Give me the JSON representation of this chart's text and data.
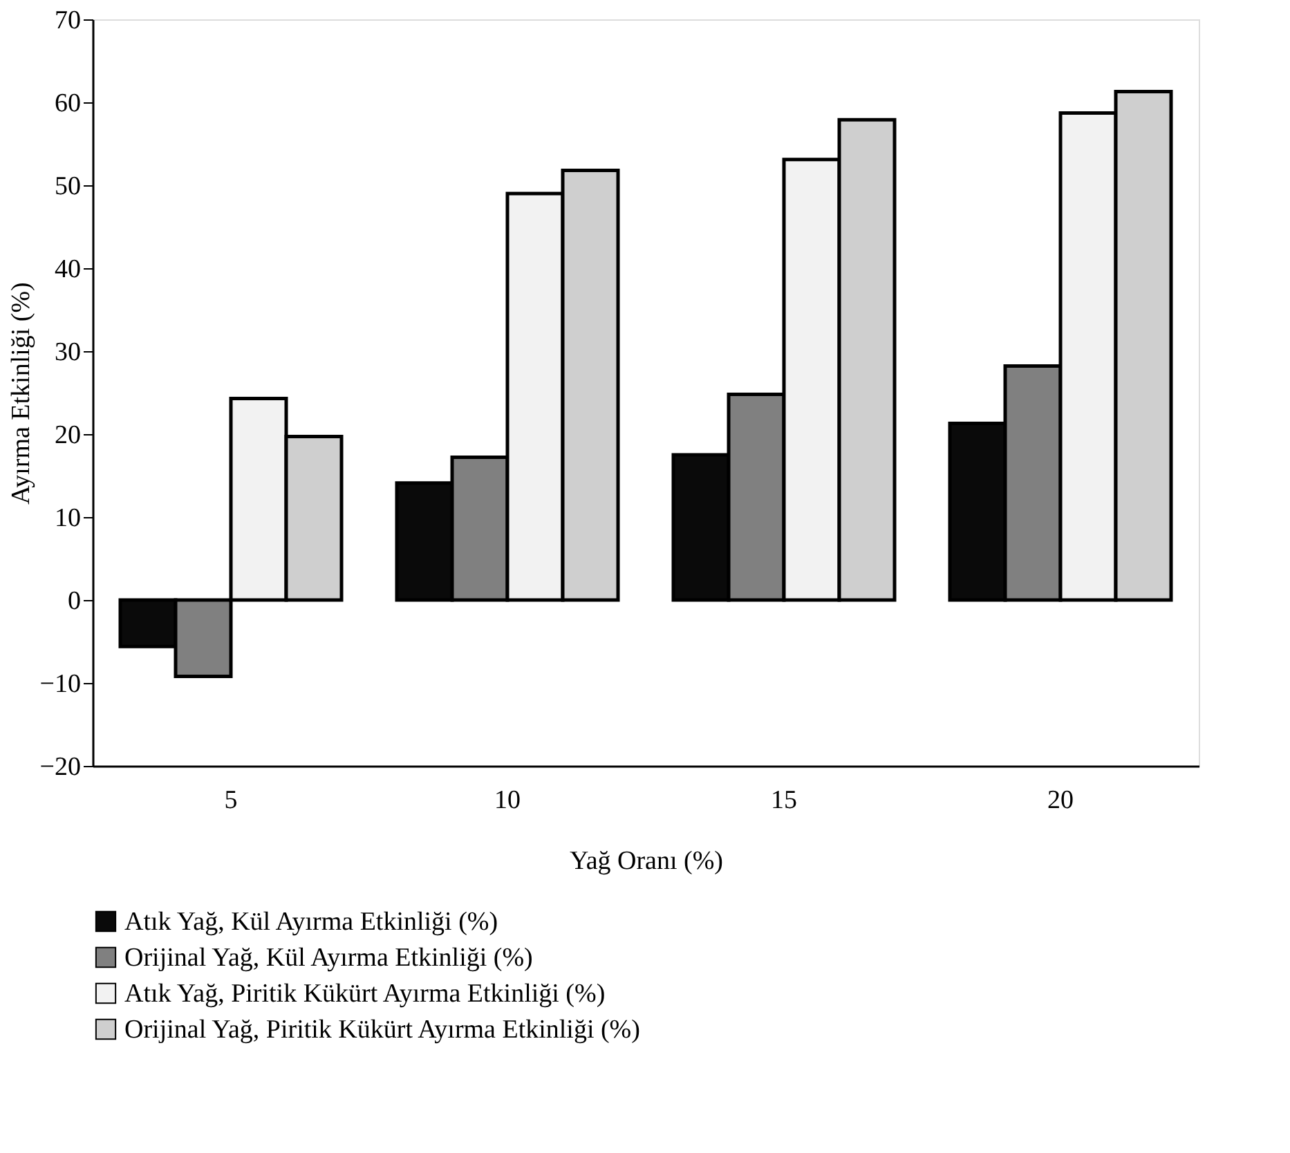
{
  "chart_data": {
    "type": "bar",
    "xlabel": "Yağ Oranı (%)",
    "ylabel": "Ayırma Etkinliği (%)",
    "categories": [
      "5",
      "10",
      "15",
      "20"
    ],
    "series": [
      {
        "name": "Atık Yağ, Kül Ayırma Etkinliği (%)",
        "color": "#0a0a0a",
        "values": [
          -5.6,
          14.1,
          17.5,
          21.3
        ]
      },
      {
        "name": "Orijinal Yağ, Kül Ayırma Etkinliği (%)",
        "color": "#808080",
        "values": [
          -9.2,
          17.2,
          24.8,
          28.2
        ]
      },
      {
        "name": "Atık Yağ, Piritik Kükürt Ayırma Etkinliği (%)",
        "color": "#f2f2f2",
        "values": [
          24.3,
          49.0,
          53.1,
          58.7
        ]
      },
      {
        "name": "Orijinal Yağ, Piritik Kükürt Ayırma Etkinliği (%)",
        "color": "#cfcfcf",
        "values": [
          19.7,
          51.8,
          57.9,
          61.3
        ]
      }
    ],
    "ylim": [
      -20,
      70
    ],
    "yticks": [
      -20,
      -10,
      0,
      10,
      20,
      30,
      40,
      50,
      60,
      70
    ],
    "grid": false,
    "legend": "bottom"
  }
}
